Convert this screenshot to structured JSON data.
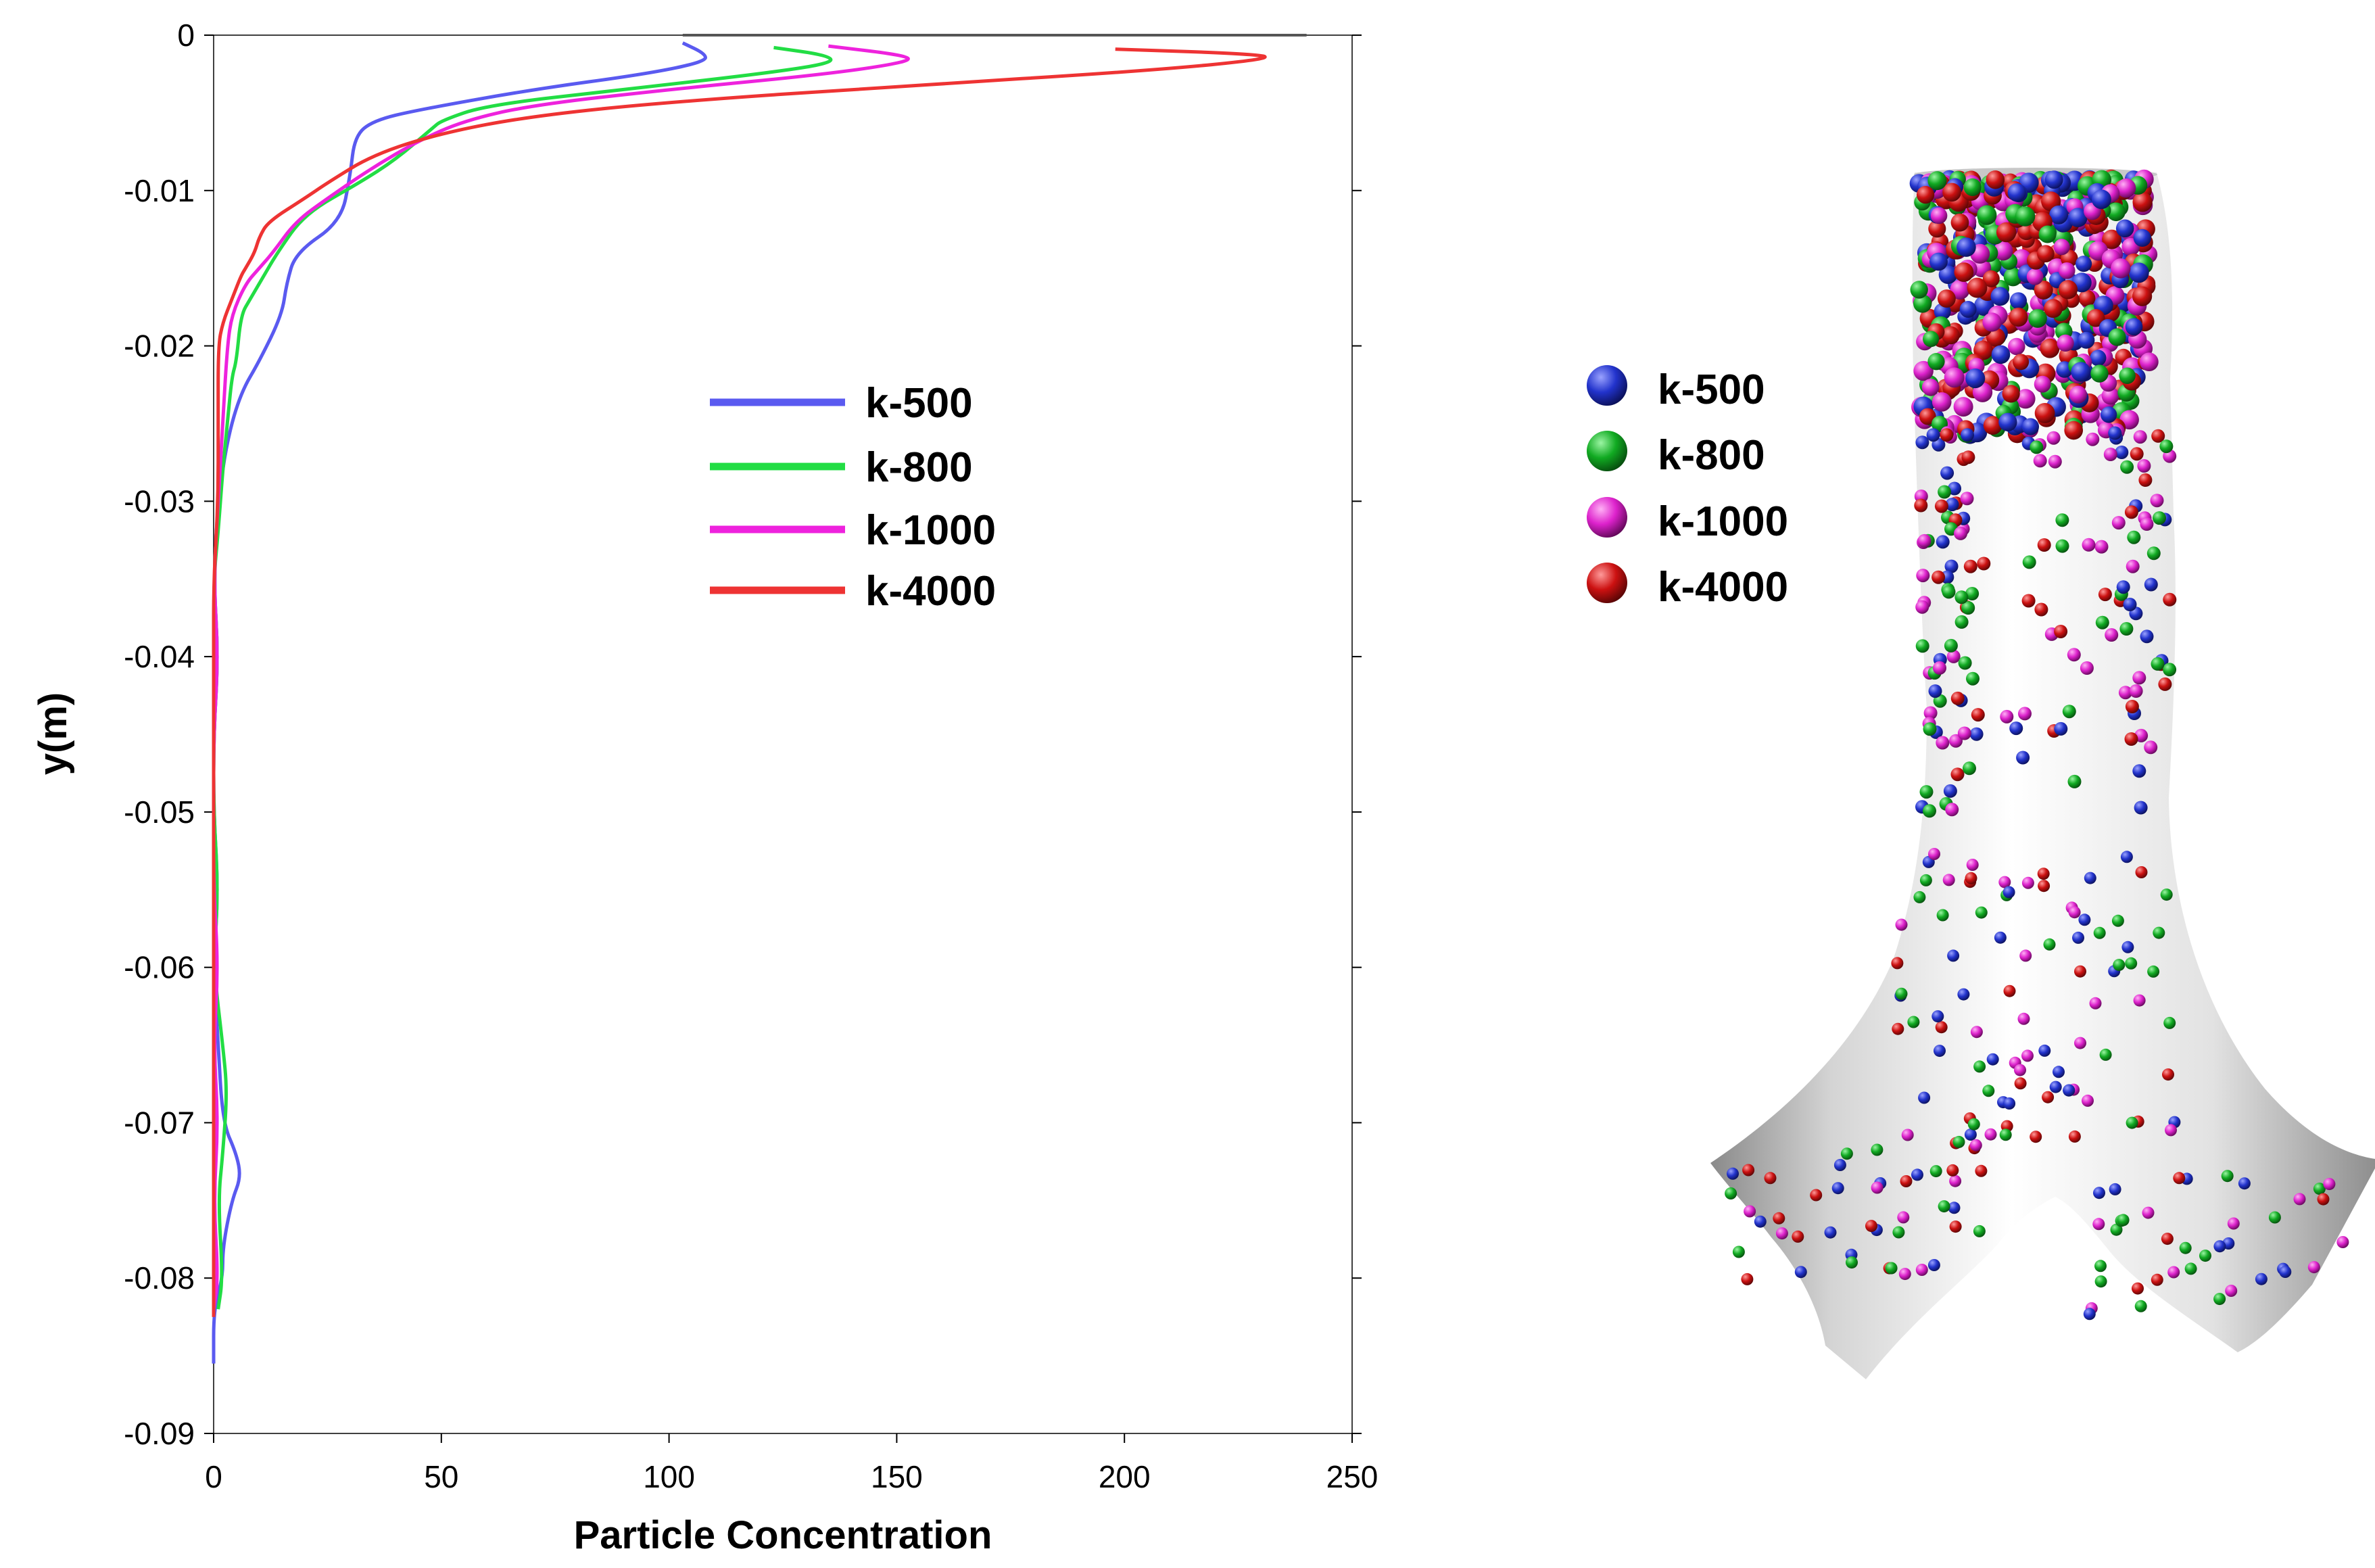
{
  "chart_data": [
    {
      "type": "line",
      "title": "",
      "xlabel": "Particle Concentration",
      "ylabel": "y(m)",
      "xlim": [
        0,
        250
      ],
      "ylim": [
        -0.09,
        0
      ],
      "x_ticks": [
        "0",
        "50",
        "100",
        "150",
        "200",
        "250"
      ],
      "y_ticks": [
        "0",
        "-0.01",
        "-0.02",
        "-0.03",
        "-0.04",
        "-0.05",
        "-0.06",
        "-0.07",
        "-0.08",
        "-0.09"
      ],
      "grid": false,
      "legend_position": "center",
      "series": [
        {
          "name": "k-500",
          "color": "#5a5af0",
          "points": [
            [
              103,
              -0.0005
            ],
            [
              108,
              -0.0012
            ],
            [
              108,
              -0.0017
            ],
            [
              95,
              -0.0025
            ],
            [
              70,
              -0.0035
            ],
            [
              45,
              -0.0048
            ],
            [
              35,
              -0.0055
            ],
            [
              31,
              -0.0065
            ],
            [
              30,
              -0.009
            ],
            [
              28,
              -0.012
            ],
            [
              18,
              -0.014
            ],
            [
              16,
              -0.016
            ],
            [
              15,
              -0.018
            ],
            [
              10,
              -0.021
            ],
            [
              6,
              -0.023
            ],
            [
              3,
              -0.026
            ],
            [
              1,
              -0.03
            ],
            [
              0,
              -0.035
            ],
            [
              1,
              -0.04
            ],
            [
              0,
              -0.045
            ],
            [
              0,
              -0.05
            ],
            [
              1,
              -0.055
            ],
            [
              0,
              -0.06
            ],
            [
              1,
              -0.065
            ],
            [
              2,
              -0.07
            ],
            [
              5,
              -0.072
            ],
            [
              6,
              -0.0735
            ],
            [
              4,
              -0.075
            ],
            [
              2,
              -0.078
            ],
            [
              2,
              -0.08
            ],
            [
              0,
              -0.082
            ],
            [
              0,
              -0.0855
            ]
          ]
        },
        {
          "name": "k-800",
          "color": "#22dd44",
          "points": [
            [
              123,
              -0.0008
            ],
            [
              135,
              -0.0013
            ],
            [
              136,
              -0.0018
            ],
            [
              120,
              -0.0025
            ],
            [
              90,
              -0.0035
            ],
            [
              60,
              -0.0045
            ],
            [
              50,
              -0.0055
            ],
            [
              48,
              -0.006
            ],
            [
              40,
              -0.008
            ],
            [
              32,
              -0.0095
            ],
            [
              20,
              -0.0115
            ],
            [
              14,
              -0.014
            ],
            [
              11,
              -0.0155
            ],
            [
              8,
              -0.017
            ],
            [
              6,
              -0.018
            ],
            [
              5,
              -0.021
            ],
            [
              4,
              -0.022
            ],
            [
              3,
              -0.025
            ],
            [
              2,
              -0.028
            ],
            [
              1,
              -0.032
            ],
            [
              0,
              -0.035
            ],
            [
              1,
              -0.04
            ],
            [
              0,
              -0.045
            ],
            [
              0,
              -0.05
            ],
            [
              1,
              -0.055
            ],
            [
              0,
              -0.06
            ],
            [
              2,
              -0.065
            ],
            [
              3,
              -0.068
            ],
            [
              2,
              -0.072
            ],
            [
              1,
              -0.075
            ],
            [
              2,
              -0.08
            ],
            [
              1,
              -0.082
            ]
          ]
        },
        {
          "name": "k-1000",
          "color": "#ee22dd",
          "points": [
            [
              135,
              -0.0007
            ],
            [
              152,
              -0.0013
            ],
            [
              153,
              -0.0017
            ],
            [
              135,
              -0.0025
            ],
            [
              100,
              -0.0035
            ],
            [
              70,
              -0.0045
            ],
            [
              55,
              -0.0055
            ],
            [
              45,
              -0.0068
            ],
            [
              35,
              -0.0085
            ],
            [
              25,
              -0.0105
            ],
            [
              18,
              -0.012
            ],
            [
              13,
              -0.014
            ],
            [
              10,
              -0.015
            ],
            [
              7,
              -0.016
            ],
            [
              4,
              -0.018
            ],
            [
              3,
              -0.02
            ],
            [
              2,
              -0.025
            ],
            [
              1,
              -0.03
            ],
            [
              0,
              -0.035
            ],
            [
              1,
              -0.04
            ],
            [
              0,
              -0.045
            ],
            [
              0,
              -0.05
            ],
            [
              0,
              -0.055
            ],
            [
              1,
              -0.06
            ],
            [
              0,
              -0.065
            ],
            [
              1,
              -0.07
            ],
            [
              0,
              -0.075
            ],
            [
              1,
              -0.08
            ],
            [
              0,
              -0.082
            ]
          ]
        },
        {
          "name": "k-4000",
          "color": "#ee3333",
          "points": [
            [
              198,
              -0.0009
            ],
            [
              228,
              -0.0012
            ],
            [
              233,
              -0.0015
            ],
            [
              205,
              -0.0023
            ],
            [
              150,
              -0.0033
            ],
            [
              100,
              -0.0043
            ],
            [
              70,
              -0.0052
            ],
            [
              50,
              -0.0063
            ],
            [
              35,
              -0.0077
            ],
            [
              25,
              -0.0095
            ],
            [
              20,
              -0.0105
            ],
            [
              12,
              -0.012
            ],
            [
              10,
              -0.013
            ],
            [
              9,
              -0.014
            ],
            [
              7,
              -0.015
            ],
            [
              6,
              -0.0155
            ],
            [
              4,
              -0.017
            ],
            [
              2,
              -0.0185
            ],
            [
              1,
              -0.02
            ],
            [
              1,
              -0.025
            ],
            [
              1,
              -0.03
            ],
            [
              0,
              -0.035
            ],
            [
              0,
              -0.04
            ],
            [
              0,
              -0.045
            ],
            [
              0,
              -0.05
            ],
            [
              0,
              -0.055
            ],
            [
              0,
              -0.06
            ],
            [
              0,
              -0.065
            ],
            [
              0,
              -0.07
            ],
            [
              0,
              -0.075
            ],
            [
              0,
              -0.08
            ],
            [
              0,
              -0.0825
            ]
          ]
        }
      ]
    }
  ],
  "particle_figure": {
    "legend": [
      {
        "label": "k-500",
        "color": "#2233cc"
      },
      {
        "label": "k-800",
        "color": "#11aa22"
      },
      {
        "label": "k-1000",
        "color": "#dd22cc"
      },
      {
        "label": "k-4000",
        "color": "#cc1111"
      }
    ]
  }
}
